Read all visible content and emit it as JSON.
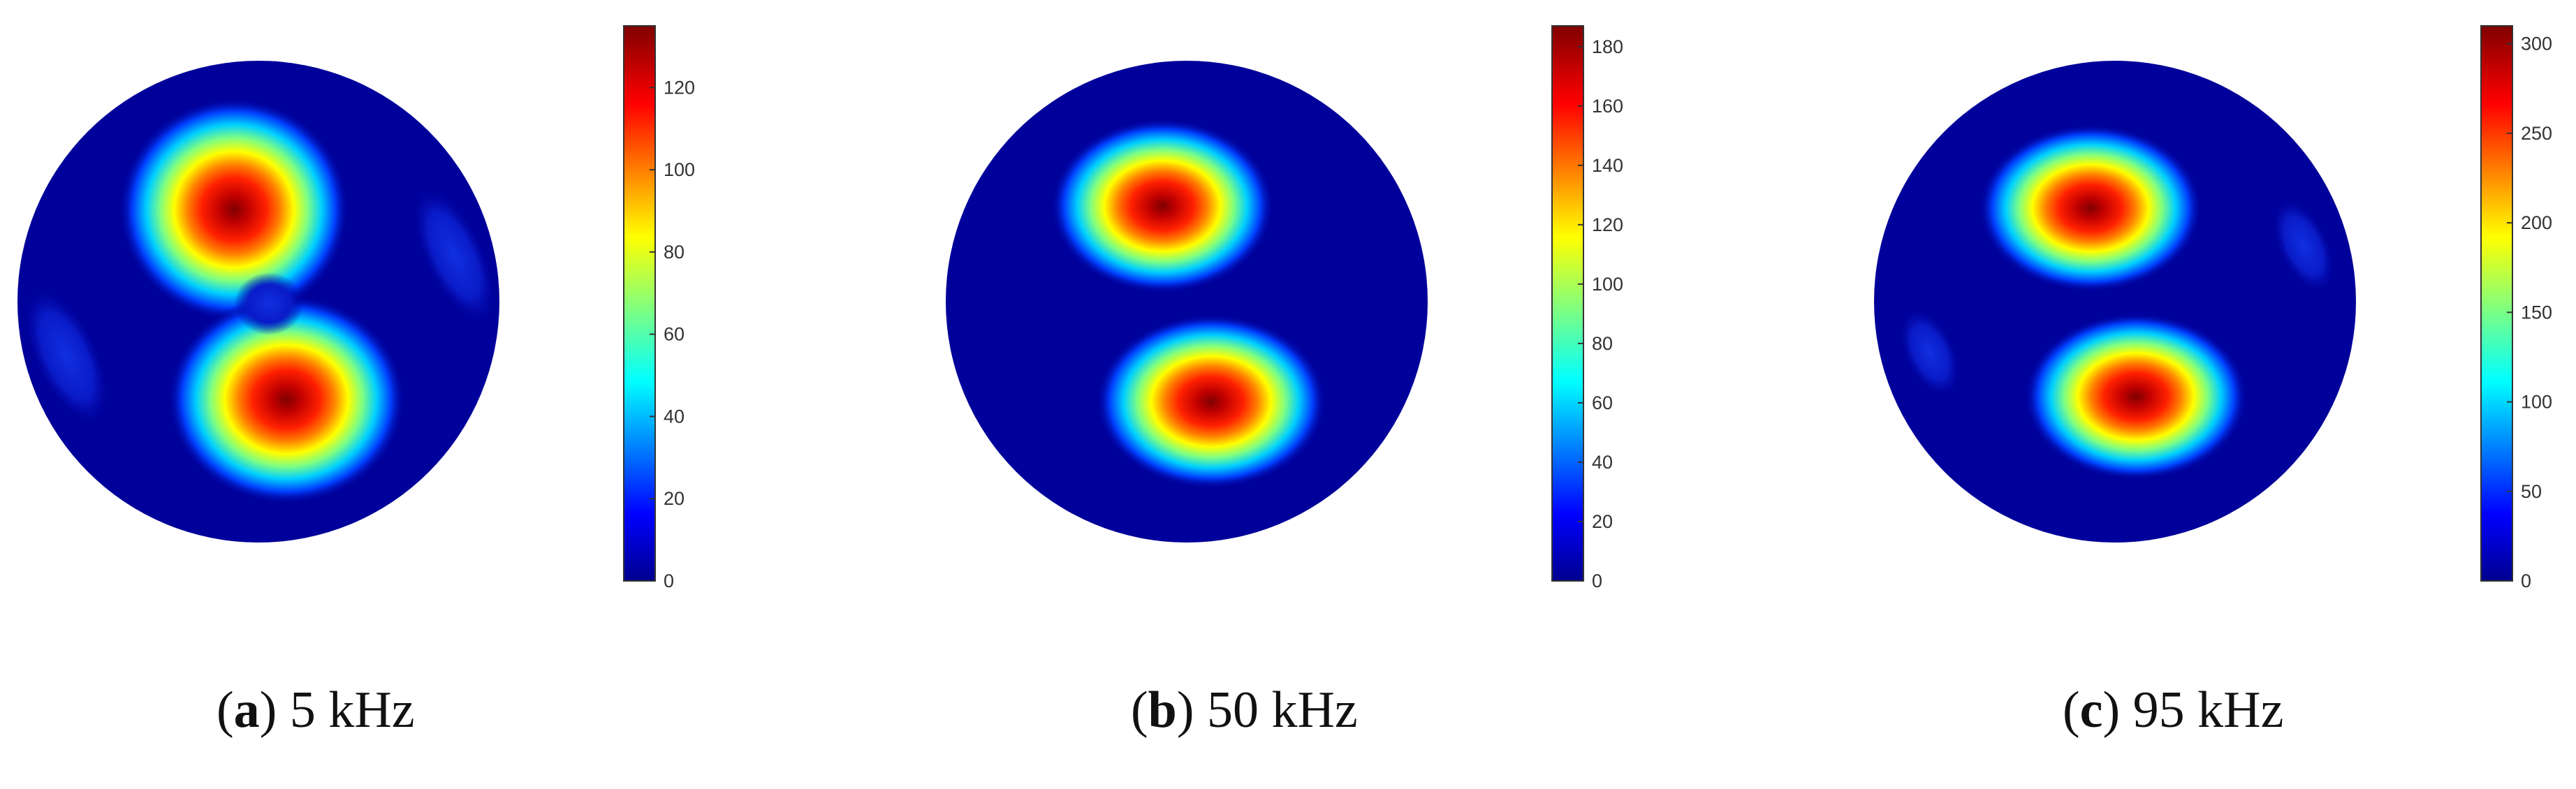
{
  "figure": {
    "panels": [
      {
        "letter": "a",
        "caption_text": "5 kHz"
      },
      {
        "letter": "b",
        "caption_text": "50 kHz"
      },
      {
        "letter": "c",
        "caption_text": "95 kHz"
      }
    ]
  },
  "chart_data": [
    {
      "type": "heatmap",
      "title": "",
      "colormap": "jet",
      "colorbar": {
        "min": 0,
        "max": 135,
        "ticks": [
          0,
          20,
          40,
          60,
          80,
          100,
          120
        ]
      },
      "blobs": [
        {
          "label": "upper inclusion",
          "peak": 135
        },
        {
          "label": "lower inclusion",
          "peak": 118
        },
        {
          "label": "left artifact",
          "peak": 12
        },
        {
          "label": "right artifact",
          "peak": 14
        }
      ]
    },
    {
      "type": "heatmap",
      "title": "",
      "colormap": "jet",
      "colorbar": {
        "min": 0,
        "max": 187,
        "ticks": [
          0,
          20,
          40,
          60,
          80,
          100,
          120,
          140,
          160,
          180
        ]
      },
      "blobs": [
        {
          "label": "upper inclusion",
          "peak": 187
        },
        {
          "label": "lower inclusion",
          "peak": 165
        }
      ]
    },
    {
      "type": "heatmap",
      "title": "",
      "colormap": "jet",
      "colorbar": {
        "min": 0,
        "max": 310,
        "ticks": [
          0,
          50,
          100,
          150,
          200,
          250,
          300
        ]
      },
      "blobs": [
        {
          "label": "upper inclusion",
          "peak": 310
        },
        {
          "label": "lower inclusion",
          "peak": 275
        },
        {
          "label": "left artifact",
          "peak": 10
        },
        {
          "label": "right artifact",
          "peak": 14
        }
      ]
    }
  ]
}
